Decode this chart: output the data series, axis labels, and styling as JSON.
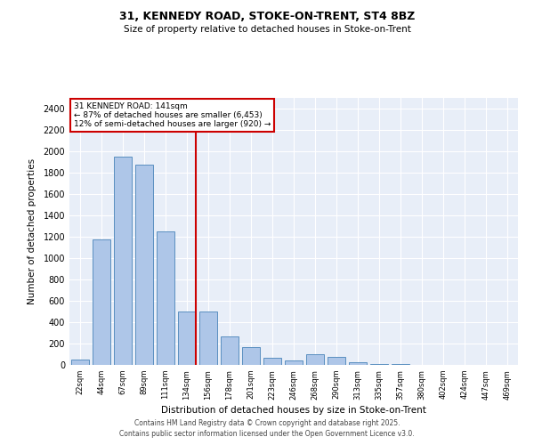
{
  "title_line1": "31, KENNEDY ROAD, STOKE-ON-TRENT, ST4 8BZ",
  "title_line2": "Size of property relative to detached houses in Stoke-on-Trent",
  "xlabel": "Distribution of detached houses by size in Stoke-on-Trent",
  "ylabel": "Number of detached properties",
  "bar_labels": [
    "22sqm",
    "44sqm",
    "67sqm",
    "89sqm",
    "111sqm",
    "134sqm",
    "156sqm",
    "178sqm",
    "201sqm",
    "223sqm",
    "246sqm",
    "268sqm",
    "290sqm",
    "313sqm",
    "335sqm",
    "357sqm",
    "380sqm",
    "402sqm",
    "424sqm",
    "447sqm",
    "469sqm"
  ],
  "bar_values": [
    50,
    1175,
    1950,
    1875,
    1250,
    500,
    500,
    265,
    165,
    65,
    40,
    100,
    75,
    25,
    10,
    5,
    2,
    1,
    1,
    1,
    0
  ],
  "bar_color": "#aec6e8",
  "bar_edge_color": "#5a8fc0",
  "vline_color": "#cc0000",
  "annotation_text": "31 KENNEDY ROAD: 141sqm\n← 87% of detached houses are smaller (6,453)\n12% of semi-detached houses are larger (920) →",
  "annotation_box_color": "#cc0000",
  "ylim": [
    0,
    2500
  ],
  "yticks": [
    0,
    200,
    400,
    600,
    800,
    1000,
    1200,
    1400,
    1600,
    1800,
    2000,
    2200,
    2400
  ],
  "background_color": "#e8eef8",
  "footnote_line1": "Contains HM Land Registry data © Crown copyright and database right 2025.",
  "footnote_line2": "Contains public sector information licensed under the Open Government Licence v3.0."
}
